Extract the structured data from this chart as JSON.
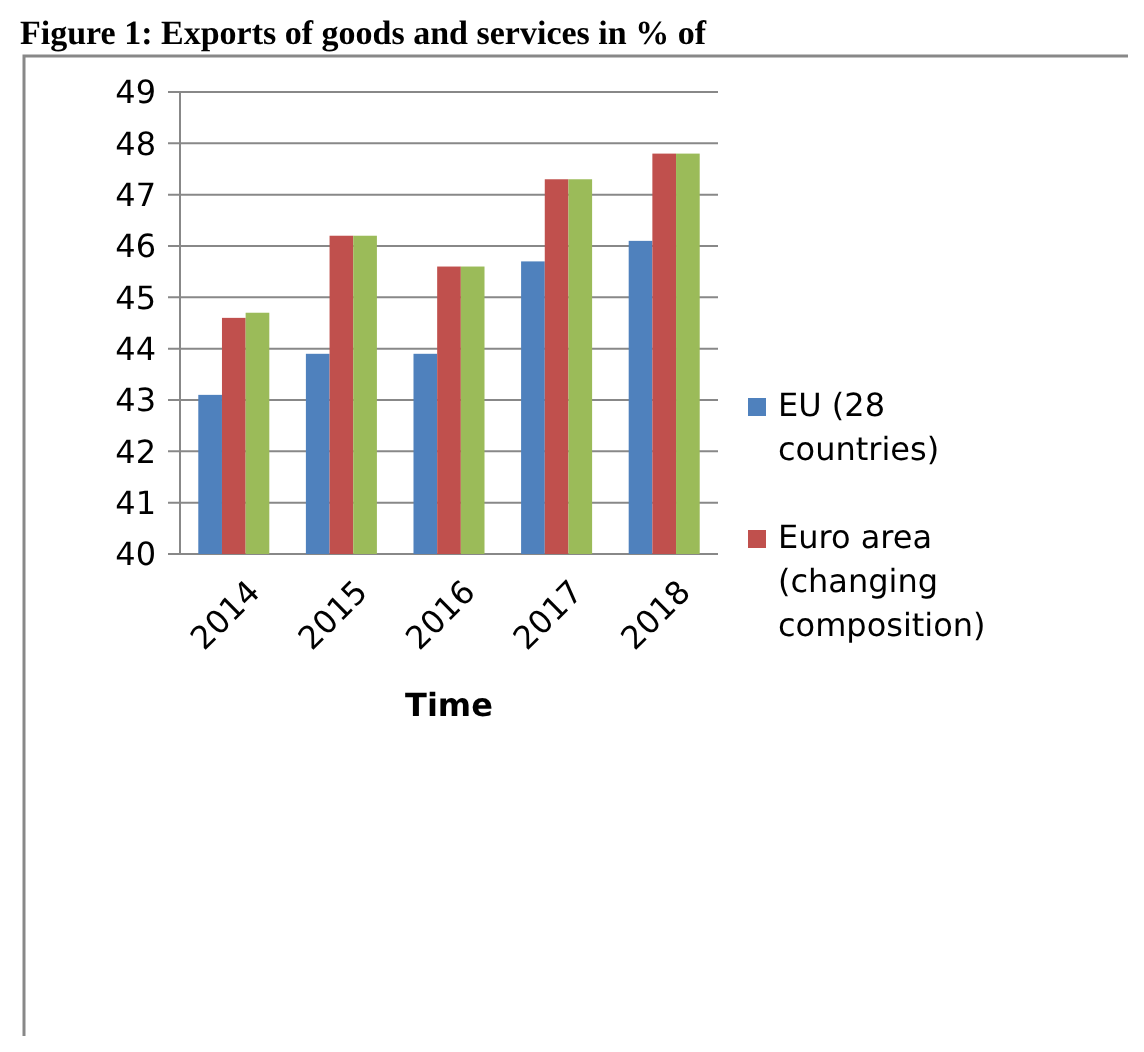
{
  "chart_data": {
    "type": "bar",
    "title": "Figure 1: Exports of goods and services in % of",
    "xlabel": "Time",
    "categories": [
      "2014",
      "2015",
      "2016",
      "2017",
      "2018"
    ],
    "series": [
      {
        "name": "EU (28 countries)",
        "color": "#4f81bd",
        "values": [
          43.1,
          43.9,
          43.9,
          45.7,
          46.1
        ]
      },
      {
        "name": "Euro area (changing composition)",
        "color": "#c0504d",
        "values": [
          44.6,
          46.2,
          45.6,
          47.3,
          47.8
        ]
      },
      {
        "color": "#9bbb59",
        "values": [
          44.7,
          46.2,
          45.6,
          47.3,
          47.8
        ]
      }
    ],
    "ylim": [
      40,
      49
    ],
    "yticks": [
      40,
      41,
      42,
      43,
      44,
      45,
      46,
      47,
      48,
      49
    ],
    "grid": "y",
    "legend": "right"
  }
}
